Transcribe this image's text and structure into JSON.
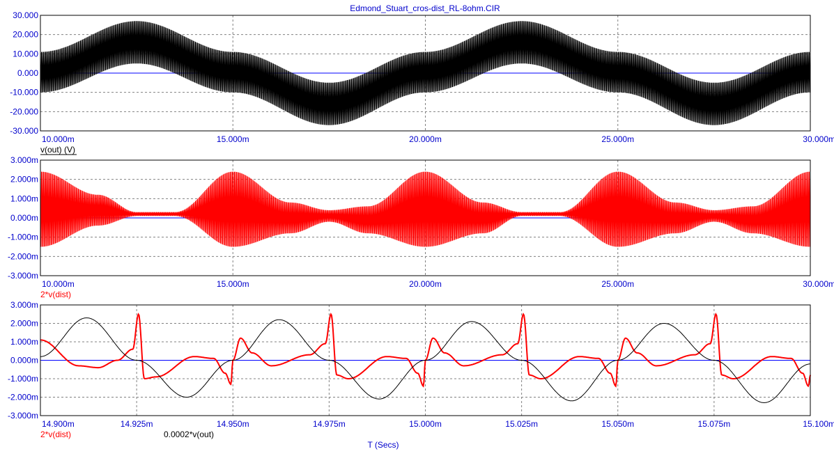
{
  "title": "Edmond_Stuart_cros-dist_RL-8ohm.CIR",
  "xaxis_label": "T (Secs)",
  "colors": {
    "background": "#ffffff",
    "frame": "#000000",
    "grid": "#808080",
    "tick_text": "#0000cc",
    "zero_line": "#0000ff",
    "trace_black": "#000000",
    "trace_red": "#ff0000"
  },
  "chart_data": [
    {
      "type": "line",
      "panel": "top",
      "x_ticks": [
        "10.000m",
        "15.000m",
        "20.000m",
        "25.000m",
        "30.000m"
      ],
      "y_ticks": [
        "30.000",
        "20.000",
        "10.000",
        "0.000",
        "-10.000",
        "-20.000",
        "-30.000"
      ],
      "xlim": [
        0.01,
        0.03
      ],
      "ylim": [
        -30,
        30
      ],
      "grid": true,
      "series": [
        {
          "name": "v(out) (V)",
          "label": "v(out) (V)",
          "color": "#000000",
          "description": "20 kHz carrier with 100 Hz envelope; center approx 11*sin(2*pi*100*(t-0.01)+0.3), amplitude approx 15.5 V",
          "envelope_x": [
            0.01,
            0.0125,
            0.015,
            0.0175,
            0.02,
            0.0225,
            0.025,
            0.0275,
            0.03
          ],
          "envelope_upper": [
            11,
            27,
            11,
            -5,
            11,
            27,
            11,
            -5,
            11
          ],
          "envelope_lower": [
            -10,
            5,
            -10,
            -27,
            -10,
            5,
            -10,
            -27,
            -10
          ]
        }
      ]
    },
    {
      "type": "line",
      "panel": "middle",
      "x_ticks": [
        "10.000m",
        "15.000m",
        "20.000m",
        "25.000m",
        "30.000m"
      ],
      "y_ticks": [
        "3.000m",
        "2.000m",
        "1.000m",
        "0.000m",
        "-1.000m",
        "-2.000m",
        "-3.000m"
      ],
      "xlim": [
        0.01,
        0.03
      ],
      "ylim": [
        -0.003,
        0.003
      ],
      "grid": true,
      "series": [
        {
          "name": "2*v(dist)",
          "label": "2*v(dist)",
          "color": "#ff0000",
          "description": "crossover distortion bursts at 200 Hz rate; peak approx 2.4m, trough approx -1.5m; quiet segments near 0.2m",
          "envelope_x": [
            0.01,
            0.0115,
            0.0125,
            0.0135,
            0.015,
            0.0165,
            0.0175,
            0.0185,
            0.02,
            0.0215,
            0.0225,
            0.0235,
            0.025,
            0.0265,
            0.0275,
            0.0285,
            0.03
          ],
          "envelope_upper": [
            0.0024,
            0.0012,
            0.0003,
            0.0003,
            0.0024,
            0.0008,
            0.0004,
            0.0006,
            0.0024,
            0.0008,
            0.0003,
            0.0003,
            0.0024,
            0.0008,
            0.0004,
            0.0006,
            0.0024
          ],
          "envelope_lower": [
            -0.0015,
            -0.0004,
            0.0001,
            0.0001,
            -0.0015,
            -0.0008,
            -0.0002,
            -0.0008,
            -0.0015,
            -0.0008,
            0.0001,
            0.0001,
            -0.0015,
            -0.0008,
            -0.0002,
            -0.0008,
            -0.0015
          ]
        }
      ]
    },
    {
      "type": "line",
      "panel": "bottom",
      "x_ticks": [
        "14.900m",
        "14.925m",
        "14.950m",
        "14.975m",
        "15.000m",
        "15.025m",
        "15.050m",
        "15.075m",
        "15.100m"
      ],
      "y_ticks": [
        "3.000m",
        "2.000m",
        "1.000m",
        "0.000m",
        "-1.000m",
        "-2.000m",
        "-3.000m"
      ],
      "xlim": [
        0.0149,
        0.0151
      ],
      "ylim": [
        -0.003,
        0.003
      ],
      "grid": true,
      "series": [
        {
          "name": "2*v(dist)",
          "label": "2*v(dist)",
          "color": "#ff0000",
          "x": [
            0.0149,
            0.01491,
            0.014915,
            0.01492,
            0.014924,
            0.0149255,
            0.014927,
            0.01493,
            0.01494,
            0.014945,
            0.014948,
            0.0149495,
            0.01495,
            0.014952,
            0.014955,
            0.01496,
            0.01497,
            0.014974,
            0.0149755,
            0.014977,
            0.01498,
            0.01499,
            0.014995,
            0.014998,
            0.0149995,
            0.015,
            0.015002,
            0.015005,
            0.01501,
            0.01502,
            0.015024,
            0.0150255,
            0.015027,
            0.01503,
            0.01504,
            0.015045,
            0.015048,
            0.0150495,
            0.01505,
            0.015052,
            0.015055,
            0.01506,
            0.01507,
            0.015074,
            0.0150755,
            0.015077,
            0.01508,
            0.01509,
            0.015095,
            0.015098,
            0.0150995,
            0.0151
          ],
          "y": [
            0.0011,
            -0.0003,
            -0.0004,
            0.0,
            0.0006,
            0.0025,
            -0.001,
            -0.0009,
            0.0002,
            0.0001,
            -0.0007,
            -0.0013,
            0.0,
            0.0012,
            0.0004,
            -0.0003,
            0.0003,
            0.0009,
            0.0025,
            -0.0008,
            -0.001,
            0.0002,
            0.0001,
            -0.0007,
            -0.0014,
            0.0,
            0.0012,
            0.0004,
            -0.0003,
            0.0003,
            0.0009,
            0.0025,
            -0.0008,
            -0.001,
            0.0002,
            0.0001,
            -0.0007,
            -0.0014,
            0.0,
            0.0012,
            0.0004,
            -0.0003,
            0.0003,
            0.0009,
            0.0025,
            -0.0008,
            -0.001,
            0.0002,
            0.0001,
            -0.0007,
            -0.0014,
            -0.0008
          ]
        },
        {
          "name": "0.0002*v(out)",
          "label": "0.0002*v(out)",
          "color": "#000000",
          "x": [
            0.0149,
            0.014912,
            0.014925,
            0.014938,
            0.01495,
            0.014962,
            0.014975,
            0.014988,
            0.015,
            0.015012,
            0.015025,
            0.015038,
            0.01505,
            0.015062,
            0.015075,
            0.015088,
            0.0151
          ],
          "y": [
            0.0002,
            0.0023,
            0.0,
            -0.002,
            0.0,
            0.0022,
            0.0,
            -0.0021,
            0.0,
            0.0021,
            0.0,
            -0.0022,
            0.0,
            0.002,
            0.0,
            -0.0023,
            -0.0002
          ]
        }
      ]
    }
  ]
}
